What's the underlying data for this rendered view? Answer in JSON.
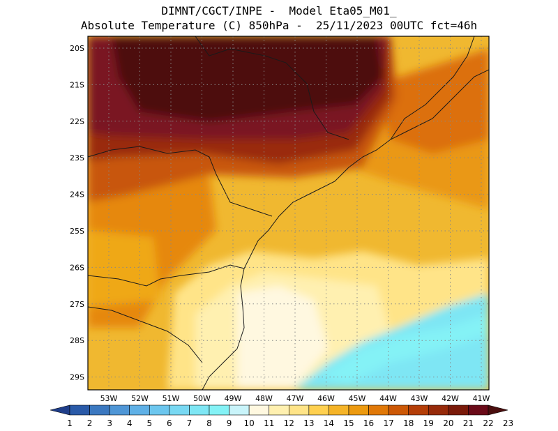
{
  "title": {
    "line1": "DIMNT/CGCT/INPE -  Model Eta05_M01_",
    "line2": "Absolute Temperature (C) 850hPa -  25/11/2023 00UTC fct=46h"
  },
  "map": {
    "lat_labels": [
      "20S",
      "21S",
      "22S",
      "23S",
      "24S",
      "25S",
      "26S",
      "27S",
      "28S",
      "29S"
    ],
    "lon_labels": [
      "53W",
      "52W",
      "51W",
      "50W",
      "49W",
      "48W",
      "47W",
      "46W",
      "45W",
      "44W",
      "43W",
      "42W",
      "41W"
    ]
  },
  "colorbar": {
    "labels": [
      "1",
      "2",
      "3",
      "4",
      "5",
      "6",
      "7",
      "8",
      "9",
      "10",
      "11",
      "12",
      "13",
      "14",
      "15",
      "16",
      "17",
      "18",
      "19",
      "20",
      "21",
      "22",
      "23"
    ],
    "colors": [
      "#1f3e8a",
      "#2a5aa8",
      "#3b78c0",
      "#4f96d6",
      "#5fb0e6",
      "#6cc6ee",
      "#78d8f2",
      "#7ee6f4",
      "#84f2f6",
      "#c9f4fa",
      "#fff8e0",
      "#fff0b0",
      "#ffe488",
      "#ffd050",
      "#f5b428",
      "#ec9a10",
      "#e07808",
      "#cc5806",
      "#b43e08",
      "#962a0a",
      "#7a1a0a",
      "#6a0a18",
      "#4a0e0e"
    ]
  }
}
